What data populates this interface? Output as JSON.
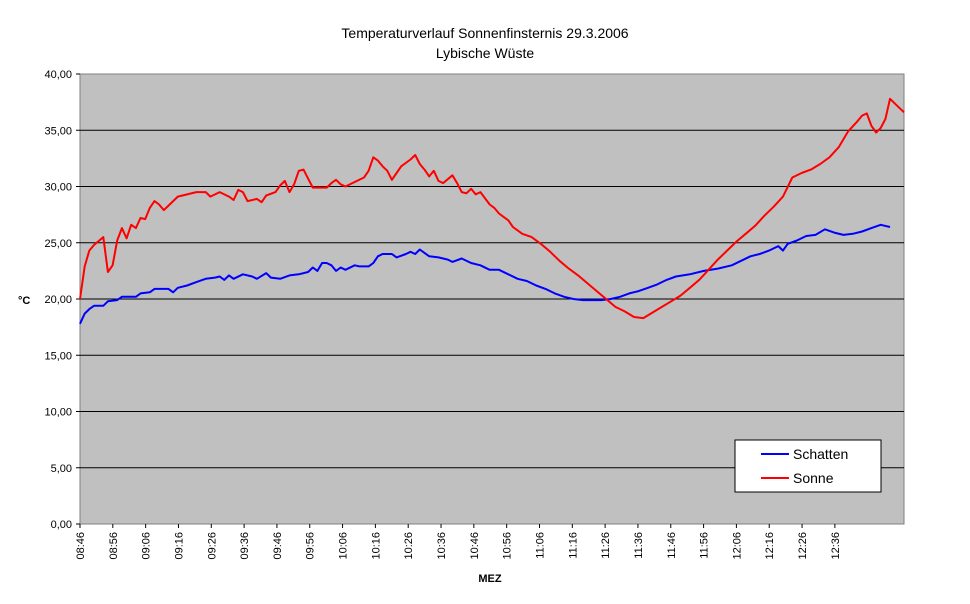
{
  "chart_data": {
    "type": "line",
    "title": "Temperaturverlauf Sonnenfinsternis 29.3.2006",
    "subtitle": "Lybische Wüste",
    "xlabel": "MEZ",
    "ylabel": "°C",
    "ylim": [
      0,
      40
    ],
    "yticks": [
      "0,00",
      "5,00",
      "10,00",
      "15,00",
      "20,00",
      "25,00",
      "30,00",
      "35,00",
      "40,00"
    ],
    "xticks": [
      "08:46",
      "08:56",
      "09:06",
      "09:16",
      "09:26",
      "09:36",
      "09:46",
      "09:56",
      "10:06",
      "10:16",
      "10:26",
      "10:36",
      "10:46",
      "10:56",
      "11:06",
      "11:16",
      "11:26",
      "11:36",
      "11:46",
      "11:56",
      "12:06",
      "12:16",
      "12:26",
      "12:36"
    ],
    "x_range_minutes": [
      0,
      124
    ],
    "grid": true,
    "legend_position": "bottom-right",
    "plot_background": "#c0c0c0",
    "series": [
      {
        "name": "Schatten",
        "color": "#0000ff",
        "points": [
          [
            0,
            17.8
          ],
          [
            1,
            18.7
          ],
          [
            2,
            19.1
          ],
          [
            3,
            19.4
          ],
          [
            5,
            19.4
          ],
          [
            6,
            19.8
          ],
          [
            8,
            19.9
          ],
          [
            9,
            20.2
          ],
          [
            12,
            20.2
          ],
          [
            13,
            20.5
          ],
          [
            15,
            20.6
          ],
          [
            16,
            20.9
          ],
          [
            19,
            20.9
          ],
          [
            20,
            20.6
          ],
          [
            21,
            21.0
          ],
          [
            23,
            21.2
          ],
          [
            25,
            21.5
          ],
          [
            27,
            21.8
          ],
          [
            29,
            21.9
          ],
          [
            30,
            22.0
          ],
          [
            31,
            21.7
          ],
          [
            32,
            22.1
          ],
          [
            33,
            21.8
          ],
          [
            35,
            22.2
          ],
          [
            37,
            22.0
          ],
          [
            38,
            21.8
          ],
          [
            40,
            22.3
          ],
          [
            41,
            21.9
          ],
          [
            43,
            21.8
          ],
          [
            45,
            22.1
          ],
          [
            47,
            22.2
          ],
          [
            49,
            22.4
          ],
          [
            50,
            22.8
          ],
          [
            51,
            22.5
          ],
          [
            52,
            23.2
          ],
          [
            53,
            23.2
          ],
          [
            54,
            23.0
          ],
          [
            55,
            22.5
          ],
          [
            56,
            22.8
          ],
          [
            57,
            22.6
          ],
          [
            59,
            23.0
          ],
          [
            60,
            22.9
          ],
          [
            62,
            22.9
          ],
          [
            63,
            23.2
          ],
          [
            64,
            23.8
          ],
          [
            65,
            24.0
          ],
          [
            67,
            24.0
          ],
          [
            68,
            23.7
          ],
          [
            70,
            24.0
          ],
          [
            71,
            24.2
          ],
          [
            72,
            24.0
          ],
          [
            73,
            24.4
          ],
          [
            74,
            24.1
          ],
          [
            75,
            23.8
          ],
          [
            77,
            23.7
          ],
          [
            79,
            23.5
          ],
          [
            80,
            23.3
          ],
          [
            82,
            23.6
          ],
          [
            84,
            23.2
          ],
          [
            86,
            23.0
          ],
          [
            88,
            22.6
          ],
          [
            90,
            22.6
          ],
          [
            92,
            22.2
          ],
          [
            94,
            21.8
          ],
          [
            96,
            21.6
          ],
          [
            98,
            21.2
          ],
          [
            100,
            20.9
          ],
          [
            102,
            20.5
          ],
          [
            104,
            20.2
          ],
          [
            106,
            20.0
          ],
          [
            108,
            19.9
          ],
          [
            110,
            19.9
          ],
          [
            112,
            19.9
          ],
          [
            114,
            20.0
          ],
          [
            116,
            20.2
          ],
          [
            118,
            20.5
          ],
          [
            120,
            20.7
          ],
          [
            122,
            21.0
          ],
          [
            124,
            21.3
          ],
          [
            126,
            21.7
          ],
          [
            128,
            22.0
          ],
          [
            131,
            22.2
          ],
          [
            134,
            22.5
          ],
          [
            137,
            22.7
          ],
          [
            140,
            23.0
          ],
          [
            142,
            23.4
          ],
          [
            144,
            23.8
          ],
          [
            146,
            24.0
          ],
          [
            148,
            24.3
          ],
          [
            150,
            24.7
          ],
          [
            151,
            24.3
          ],
          [
            152,
            24.9
          ],
          [
            154,
            25.2
          ],
          [
            156,
            25.6
          ],
          [
            158,
            25.7
          ],
          [
            160,
            26.2
          ],
          [
            162,
            25.9
          ],
          [
            164,
            25.7
          ],
          [
            166,
            25.8
          ],
          [
            168,
            26.0
          ],
          [
            170,
            26.3
          ],
          [
            172,
            26.6
          ],
          [
            174,
            26.4
          ]
        ]
      },
      {
        "name": "Sonne",
        "color": "#ff0000",
        "points": [
          [
            0,
            20.0
          ],
          [
            1,
            22.9
          ],
          [
            2,
            24.3
          ],
          [
            3,
            24.8
          ],
          [
            5,
            25.5
          ],
          [
            6,
            22.4
          ],
          [
            7,
            23.0
          ],
          [
            8,
            25.2
          ],
          [
            9,
            26.3
          ],
          [
            10,
            25.4
          ],
          [
            11,
            26.6
          ],
          [
            12,
            26.3
          ],
          [
            13,
            27.2
          ],
          [
            14,
            27.1
          ],
          [
            15,
            28.1
          ],
          [
            16,
            28.7
          ],
          [
            17,
            28.4
          ],
          [
            18,
            27.9
          ],
          [
            19,
            28.3
          ],
          [
            21,
            29.1
          ],
          [
            23,
            29.3
          ],
          [
            25,
            29.5
          ],
          [
            27,
            29.5
          ],
          [
            28,
            29.1
          ],
          [
            30,
            29.5
          ],
          [
            32,
            29.1
          ],
          [
            33,
            28.8
          ],
          [
            34,
            29.7
          ],
          [
            35,
            29.5
          ],
          [
            36,
            28.7
          ],
          [
            38,
            28.9
          ],
          [
            39,
            28.6
          ],
          [
            40,
            29.2
          ],
          [
            42,
            29.5
          ],
          [
            43,
            30.1
          ],
          [
            44,
            30.5
          ],
          [
            45,
            29.5
          ],
          [
            46,
            30.2
          ],
          [
            47,
            31.4
          ],
          [
            48,
            31.5
          ],
          [
            49,
            30.7
          ],
          [
            50,
            29.9
          ],
          [
            53,
            29.9
          ],
          [
            54,
            30.3
          ],
          [
            55,
            30.6
          ],
          [
            56,
            30.2
          ],
          [
            57,
            30.0
          ],
          [
            59,
            30.4
          ],
          [
            61,
            30.8
          ],
          [
            62,
            31.4
          ],
          [
            63,
            32.6
          ],
          [
            64,
            32.3
          ],
          [
            65,
            31.8
          ],
          [
            66,
            31.4
          ],
          [
            67,
            30.6
          ],
          [
            68,
            31.2
          ],
          [
            69,
            31.8
          ],
          [
            71,
            32.4
          ],
          [
            72,
            32.8
          ],
          [
            73,
            32.0
          ],
          [
            74,
            31.5
          ],
          [
            75,
            30.9
          ],
          [
            76,
            31.4
          ],
          [
            77,
            30.5
          ],
          [
            78,
            30.3
          ],
          [
            80,
            31.0
          ],
          [
            81,
            30.3
          ],
          [
            82,
            29.5
          ],
          [
            83,
            29.4
          ],
          [
            84,
            29.8
          ],
          [
            85,
            29.3
          ],
          [
            86,
            29.5
          ],
          [
            88,
            28.4
          ],
          [
            89,
            28.1
          ],
          [
            90,
            27.6
          ],
          [
            91,
            27.3
          ],
          [
            92,
            27.0
          ],
          [
            93,
            26.4
          ],
          [
            95,
            25.8
          ],
          [
            97,
            25.5
          ],
          [
            99,
            24.9
          ],
          [
            101,
            24.2
          ],
          [
            103,
            23.4
          ],
          [
            105,
            22.7
          ],
          [
            107,
            22.1
          ],
          [
            109,
            21.4
          ],
          [
            111,
            20.7
          ],
          [
            113,
            20.0
          ],
          [
            115,
            19.3
          ],
          [
            117,
            18.9
          ],
          [
            119,
            18.4
          ],
          [
            121,
            18.3
          ],
          [
            123,
            18.8
          ],
          [
            125,
            19.3
          ],
          [
            127,
            19.8
          ],
          [
            129,
            20.3
          ],
          [
            131,
            21.0
          ],
          [
            133,
            21.7
          ],
          [
            135,
            22.6
          ],
          [
            137,
            23.5
          ],
          [
            139,
            24.3
          ],
          [
            141,
            25.1
          ],
          [
            143,
            25.8
          ],
          [
            145,
            26.5
          ],
          [
            147,
            27.4
          ],
          [
            149,
            28.2
          ],
          [
            151,
            29.1
          ],
          [
            153,
            30.8
          ],
          [
            155,
            31.2
          ],
          [
            157,
            31.5
          ],
          [
            159,
            32.0
          ],
          [
            161,
            32.6
          ],
          [
            163,
            33.5
          ],
          [
            165,
            34.9
          ],
          [
            167,
            35.8
          ],
          [
            168,
            36.3
          ],
          [
            169,
            36.5
          ],
          [
            170,
            35.4
          ],
          [
            171,
            34.8
          ],
          [
            172,
            35.2
          ],
          [
            173,
            36.0
          ],
          [
            174,
            37.8
          ],
          [
            176,
            37.0
          ],
          [
            177,
            36.6
          ]
        ]
      }
    ]
  }
}
